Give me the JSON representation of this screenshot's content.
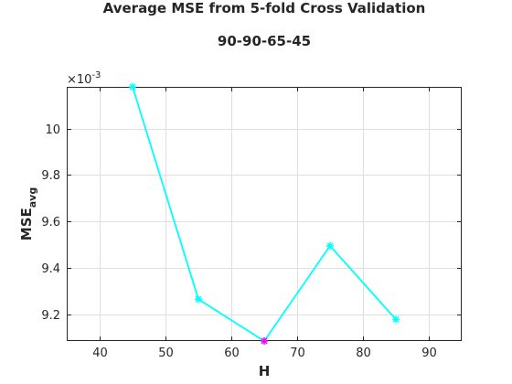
{
  "chart_data": {
    "type": "line",
    "title": "Average MSE from 5-fold Cross Validation",
    "subtitle": "90-90-65-45",
    "xlabel": "H",
    "ylabel": {
      "main": "MSE",
      "subscript": "avg"
    },
    "exponent_label": {
      "base": "×10",
      "power": "-3"
    },
    "xlim": [
      35,
      95
    ],
    "ylim": [
      9.085,
      10.18
    ],
    "xticks": [
      40,
      50,
      60,
      70,
      80,
      90
    ],
    "yticks": [
      9.2,
      9.4,
      9.6,
      9.8,
      10.0
    ],
    "ytick_labels": [
      "9.2",
      "9.4",
      "9.6",
      "9.8",
      "10"
    ],
    "grid": true,
    "series": [
      {
        "x": [
          45,
          55,
          65,
          75,
          85
        ],
        "y": [
          10.18,
          9.265,
          9.085,
          9.495,
          9.178
        ],
        "color": "#00ffff",
        "marker": "*"
      }
    ],
    "highlight": {
      "x": 65,
      "y": 9.085,
      "color": "#ff00ff",
      "marker": "*"
    }
  }
}
